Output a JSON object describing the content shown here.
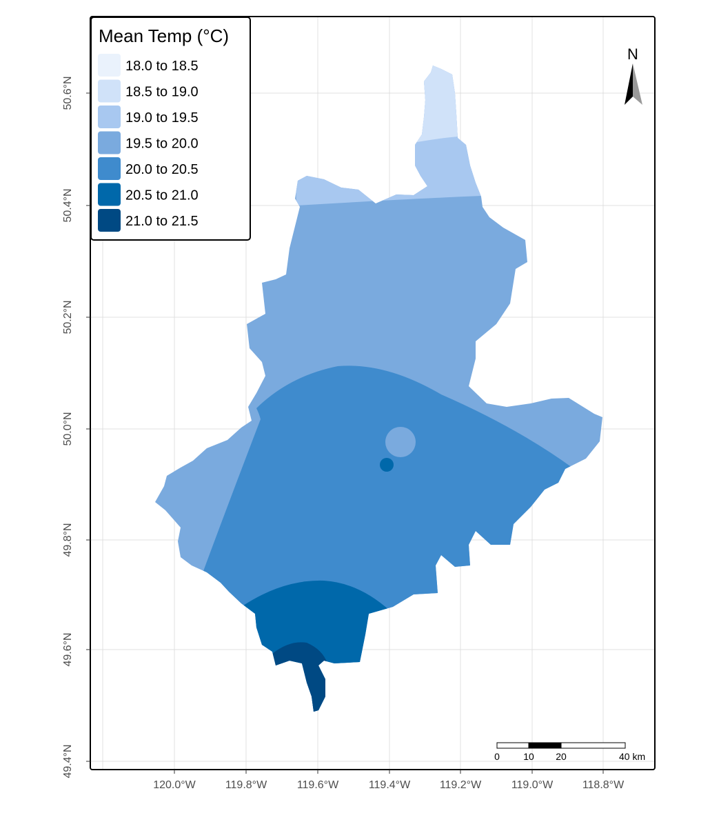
{
  "legend": {
    "title": "Mean Temp (°C)",
    "items": [
      {
        "label": "18.0 to 18.5",
        "color": "#eaf2fc"
      },
      {
        "label": "18.5 to 19.0",
        "color": "#d0e2f9"
      },
      {
        "label": "19.0 to 19.5",
        "color": "#a8c8f0"
      },
      {
        "label": "19.5 to 20.0",
        "color": "#7aaade"
      },
      {
        "label": "20.0 to 20.5",
        "color": "#3f8bcd"
      },
      {
        "label": "20.5 to 21.0",
        "color": "#0068aa"
      },
      {
        "label": "21.0 to 21.5",
        "color": "#004983"
      }
    ]
  },
  "axes": {
    "x_ticks": [
      "120.0°W",
      "119.8°W",
      "119.6°W",
      "119.4°W",
      "119.2°W",
      "119.0°W",
      "118.8°W"
    ],
    "y_ticks": [
      "49.4°N",
      "49.6°N",
      "49.8°N",
      "50.0°N",
      "50.2°N",
      "50.4°N",
      "50.6°N"
    ]
  },
  "north_arrow": {
    "label": "N"
  },
  "scale_bar": {
    "labels": [
      "0",
      "10",
      "20",
      "40 km"
    ]
  }
}
